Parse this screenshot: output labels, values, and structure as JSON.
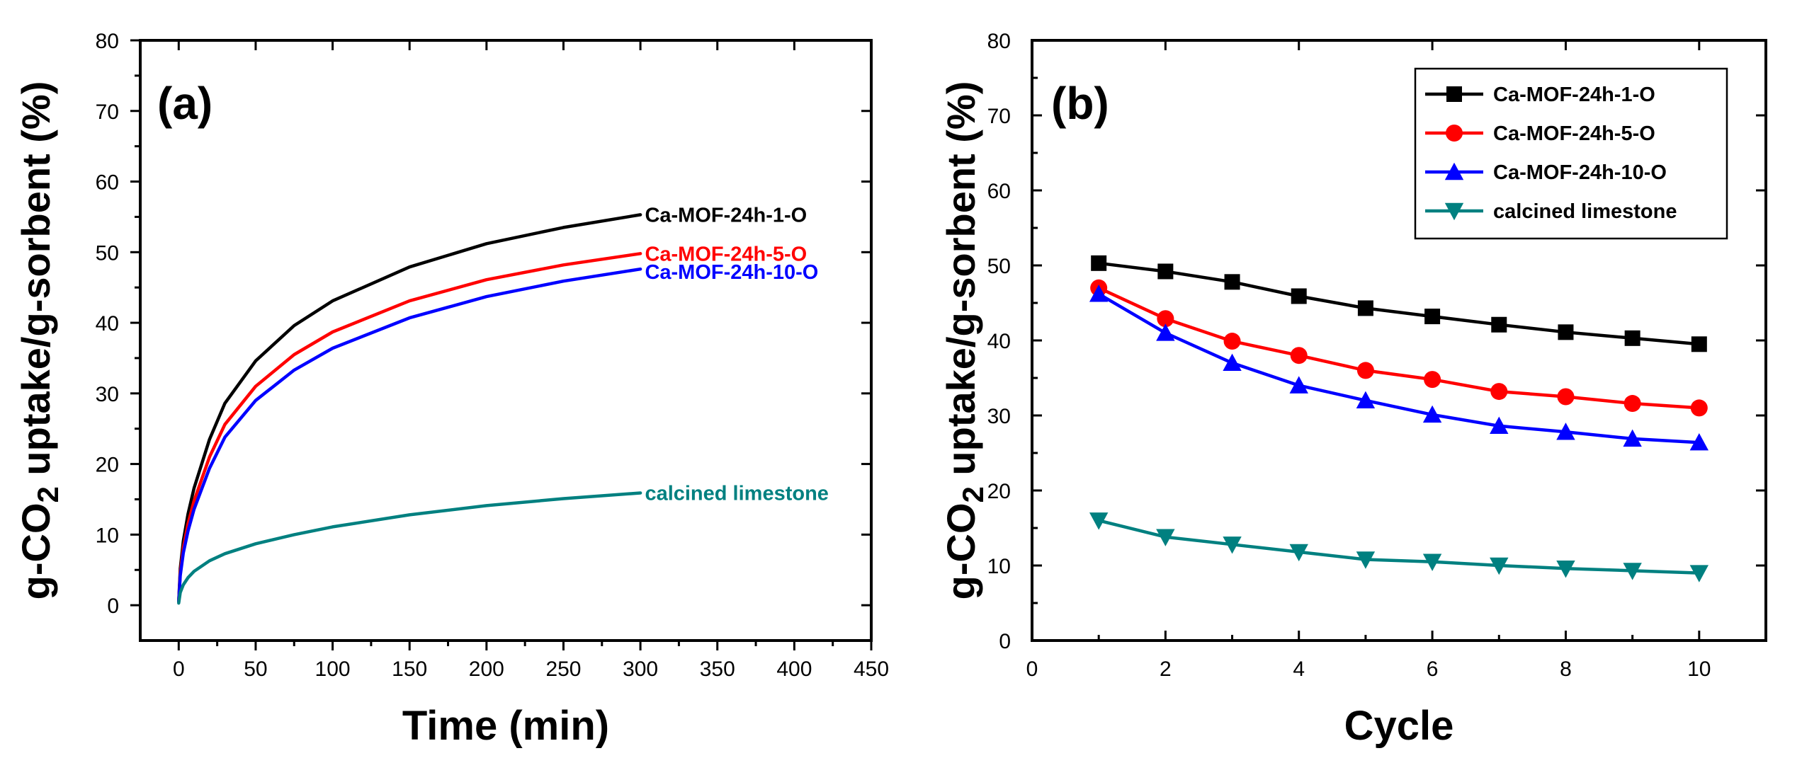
{
  "chart_data": [
    {
      "type": "line",
      "panel_label": "(a)",
      "xlabel": "Time (min)",
      "ylabel_prefix": "g-CO",
      "ylabel_sub": "2",
      "ylabel_suffix": " uptake/g-sorbent (%)",
      "xlim": [
        -25,
        450
      ],
      "ylim": [
        -5,
        80
      ],
      "xticks": [
        0,
        50,
        100,
        150,
        200,
        250,
        300,
        350,
        400,
        450
      ],
      "yticks": [
        0,
        10,
        20,
        30,
        40,
        50,
        60,
        70,
        80
      ],
      "grid": false,
      "series": [
        {
          "name": "Ca-MOF-24h-1-O",
          "color": "#000000",
          "x": [
            0,
            1,
            3,
            6,
            10,
            20,
            30,
            50,
            75,
            100,
            150,
            200,
            250,
            300
          ],
          "values": [
            0.5,
            5.2,
            9.1,
            12.9,
            16.6,
            23.5,
            28.6,
            34.6,
            39.6,
            43.1,
            47.9,
            51.2,
            53.5,
            55.3
          ]
        },
        {
          "name": "Ca-MOF-24h-5-O",
          "color": "#ff0000",
          "x": [
            0,
            1,
            3,
            6,
            10,
            20,
            30,
            50,
            75,
            100,
            150,
            200,
            250,
            300
          ],
          "values": [
            0.5,
            4.6,
            8.1,
            11.5,
            14.8,
            21.0,
            25.6,
            31.0,
            35.5,
            38.7,
            43.1,
            46.1,
            48.2,
            49.8
          ]
        },
        {
          "name": "Ca-MOF-24h-10-O",
          "color": "#0000ff",
          "x": [
            0,
            1,
            3,
            6,
            10,
            20,
            30,
            50,
            75,
            100,
            150,
            200,
            250,
            300
          ],
          "values": [
            0.5,
            4.2,
            7.4,
            10.5,
            13.6,
            19.4,
            23.8,
            29.0,
            33.3,
            36.4,
            40.7,
            43.7,
            45.9,
            47.6
          ]
        },
        {
          "name": "calcined limestone",
          "color": "#008080",
          "x": [
            0,
            1,
            3,
            6,
            10,
            20,
            30,
            50,
            75,
            100,
            150,
            200,
            250,
            300
          ],
          "values": [
            0.3,
            1.8,
            2.9,
            3.9,
            4.8,
            6.3,
            7.3,
            8.7,
            10.0,
            11.1,
            12.8,
            14.1,
            15.1,
            15.9
          ]
        }
      ],
      "annotations": [
        {
          "text": "Ca-MOF-24h-1-O",
          "color": "#000000",
          "x": 302,
          "y": 55.3
        },
        {
          "text": "Ca-MOF-24h-5-O",
          "color": "#ff0000",
          "x": 302,
          "y": 49.8
        },
        {
          "text": "Ca-MOF-24h-10-O",
          "color": "#0000ff",
          "x": 302,
          "y": 47.2
        },
        {
          "text": "calcined limestone",
          "color": "#008080",
          "x": 302,
          "y": 15.9
        }
      ]
    },
    {
      "type": "line",
      "panel_label": "(b)",
      "xlabel": "Cycle",
      "ylabel_prefix": "g-CO",
      "ylabel_sub": "2",
      "ylabel_suffix": " uptake/g-sorbent (%)",
      "xlim": [
        0,
        11
      ],
      "ylim": [
        0,
        80
      ],
      "xticks": [
        0,
        2,
        4,
        6,
        8,
        10
      ],
      "yticks": [
        0,
        10,
        20,
        30,
        40,
        50,
        60,
        70,
        80
      ],
      "grid": false,
      "legend_position": "top-right",
      "categories": [
        1,
        2,
        3,
        4,
        5,
        6,
        7,
        8,
        9,
        10
      ],
      "series": [
        {
          "name": "Ca-MOF-24h-1-O",
          "color": "#000000",
          "marker": "square",
          "values": [
            50.3,
            49.2,
            47.8,
            45.9,
            44.3,
            43.2,
            42.1,
            41.1,
            40.3,
            39.5
          ]
        },
        {
          "name": "Ca-MOF-24h-5-O",
          "color": "#ff0000",
          "marker": "circle",
          "values": [
            47.0,
            42.9,
            39.9,
            38.0,
            36.0,
            34.8,
            33.2,
            32.5,
            31.6,
            31.0
          ]
        },
        {
          "name": "Ca-MOF-24h-10-O",
          "color": "#0000ff",
          "marker": "triangle-up",
          "values": [
            46.2,
            41.0,
            37.0,
            34.0,
            32.0,
            30.1,
            28.6,
            27.8,
            26.9,
            26.4
          ]
        },
        {
          "name": "calcined limestone",
          "color": "#008080",
          "marker": "triangle-down",
          "values": [
            16.0,
            13.8,
            12.8,
            11.8,
            10.8,
            10.5,
            10.0,
            9.6,
            9.3,
            9.0
          ]
        }
      ]
    }
  ]
}
